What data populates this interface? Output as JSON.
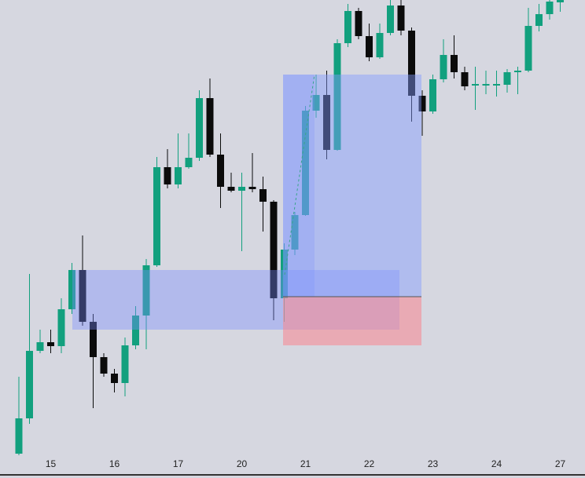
{
  "chart_data": {
    "type": "candlestick",
    "categories": [
      null,
      null,
      null,
      "15",
      null,
      null,
      null,
      null,
      null,
      "16",
      null,
      null,
      null,
      null,
      null,
      "17",
      null,
      null,
      null,
      null,
      null,
      "20",
      null,
      null,
      null,
      null,
      null,
      "21",
      null,
      null,
      null,
      null,
      null,
      "22",
      null,
      null,
      null,
      null,
      null,
      "23",
      null,
      null,
      null,
      null,
      null,
      "24",
      null,
      null,
      null,
      null,
      null,
      "27"
    ],
    "open": [
      31,
      76,
      162,
      173,
      168,
      215,
      265,
      199,
      154,
      133,
      121,
      169,
      207,
      271,
      396,
      374,
      396,
      408,
      484,
      412,
      371,
      366,
      371,
      368,
      352,
      229,
      291,
      335,
      468,
      488,
      418,
      554,
      595,
      563,
      536,
      567,
      602,
      570,
      487,
      467,
      508,
      539,
      517,
      500,
      500,
      500,
      501,
      517,
      519,
      576,
      591,
      606
    ],
    "high": [
      129,
      260,
      189,
      189,
      229,
      274,
      309,
      209,
      159,
      139,
      179,
      219,
      279,
      409,
      419,
      439,
      439,
      494,
      509,
      439,
      389,
      389,
      414,
      384,
      354,
      299,
      339,
      474,
      514,
      519,
      559,
      604,
      599,
      579,
      579,
      609,
      609,
      574,
      494,
      514,
      559,
      564,
      524,
      524,
      519,
      519,
      521,
      524,
      599,
      604,
      609,
      609
    ],
    "low": [
      29,
      69,
      159,
      159,
      159,
      209,
      194,
      89,
      129,
      109,
      104,
      164,
      164,
      269,
      369,
      369,
      394,
      404,
      409,
      344,
      364,
      289,
      364,
      314,
      201,
      199,
      284,
      334,
      459,
      406,
      417,
      549,
      559,
      531,
      534,
      564,
      564,
      454,
      436,
      464,
      504,
      509,
      494,
      469,
      489,
      486,
      491,
      489,
      517,
      569,
      584,
      594
    ],
    "close": [
      76,
      162,
      173,
      168,
      215,
      265,
      199,
      154,
      133,
      121,
      169,
      207,
      271,
      396,
      374,
      396,
      408,
      484,
      412,
      371,
      366,
      371,
      368,
      352,
      229,
      291,
      335,
      468,
      488,
      418,
      554,
      595,
      563,
      536,
      567,
      602,
      570,
      487,
      467,
      508,
      539,
      517,
      499,
      502,
      502,
      502,
      517,
      519,
      576,
      591,
      607,
      609
    ],
    "up_color": "#12a07e",
    "down_color": "#0b0b0b",
    "ylim": [
      0,
      609
    ]
  }
}
